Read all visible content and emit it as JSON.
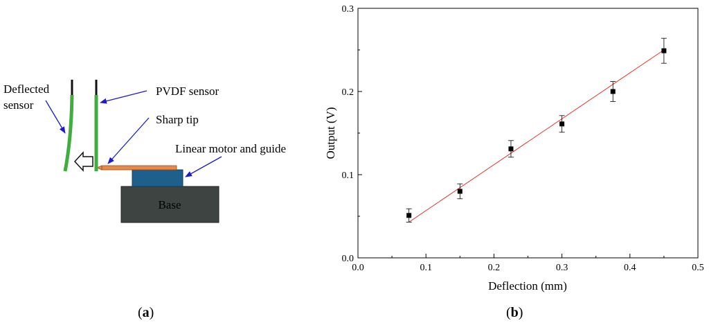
{
  "diagram": {
    "labels": {
      "deflected_line1": "Deflected",
      "deflected_line2": "sensor",
      "pvdf": "PVDF sensor",
      "sharp_tip": "Sharp tip",
      "linear_motor": "Linear motor and guide",
      "base": "Base"
    },
    "colors": {
      "sensor": "#3fae3f",
      "motor": "#1f5f8b",
      "base": "#3e4441",
      "tip": "#e8894a",
      "arrow": "#1a1ad0"
    }
  },
  "panel_a": {
    "open": "(",
    "letter": "a",
    "close": ")"
  },
  "panel_b": {
    "open": "(",
    "letter": "b",
    "close": ")"
  },
  "chart_data": {
    "type": "scatter",
    "xlabel": "Deflection (mm)",
    "ylabel": "Output (V)",
    "xlim": [
      0.0,
      0.5
    ],
    "ylim": [
      0.0,
      0.3
    ],
    "xticks": [
      "0.0",
      "0.1",
      "0.2",
      "0.3",
      "0.4",
      "0.5"
    ],
    "yticks": [
      "0.0",
      "0.1",
      "0.2",
      "0.3"
    ],
    "series": [
      {
        "marker": "square",
        "color": "#000000",
        "x": [
          0.075,
          0.15,
          0.225,
          0.3,
          0.375,
          0.45
        ],
        "y": [
          0.051,
          0.08,
          0.131,
          0.161,
          0.2,
          0.249
        ],
        "error": [
          0.008,
          0.009,
          0.01,
          0.01,
          0.012,
          0.015
        ]
      }
    ],
    "fit_line": {
      "color": "#e8322a",
      "x": [
        0.075,
        0.45
      ],
      "y": [
        0.043,
        0.25
      ]
    },
    "grid": false
  }
}
